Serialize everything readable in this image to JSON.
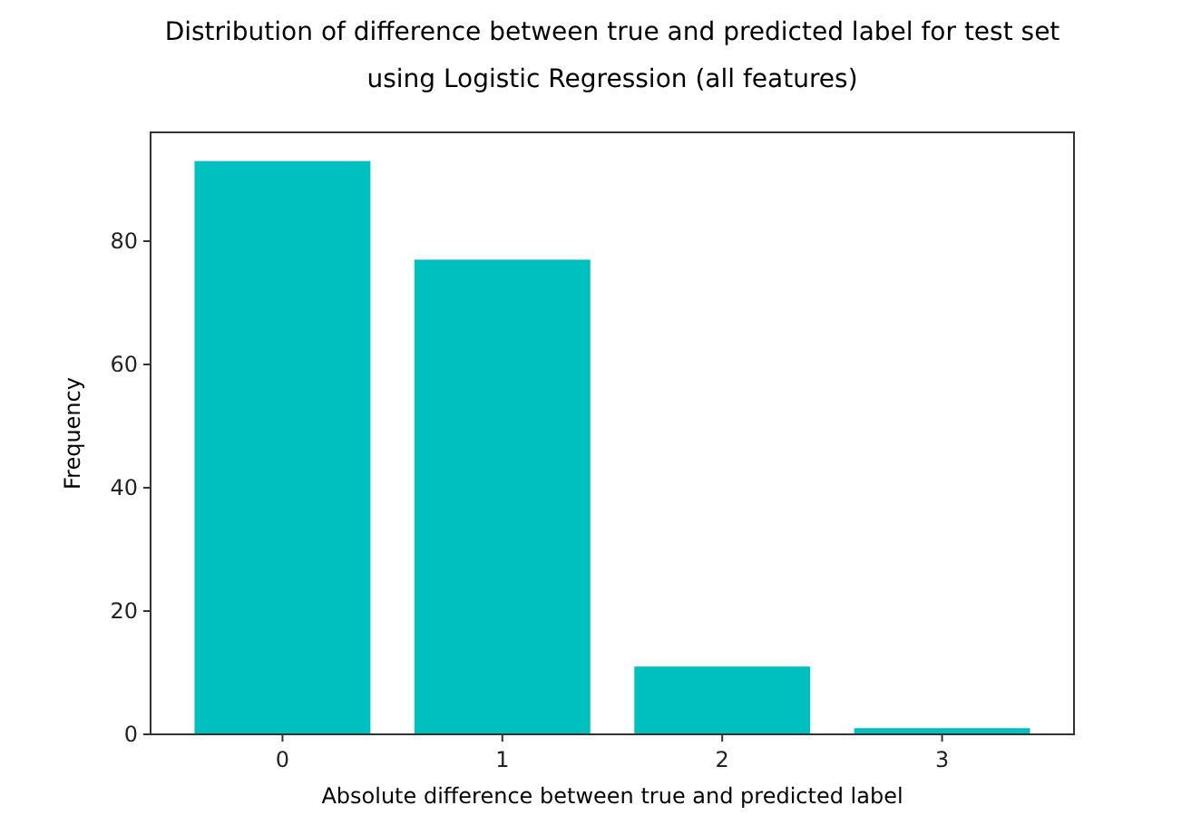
{
  "chart_data": {
    "type": "bar",
    "title": "Distribution of difference between true and predicted label for test set\nusing Logistic Regression (all features)",
    "xlabel": "Absolute difference between true and predicted label",
    "ylabel": "Frequency",
    "categories": [
      "0",
      "1",
      "2",
      "3"
    ],
    "values": [
      93,
      77,
      11,
      1
    ],
    "color": "#00bfbf",
    "ylim": [
      0,
      97.65
    ],
    "yticks": [
      0,
      20,
      40,
      60,
      80
    ],
    "grid": false
  }
}
